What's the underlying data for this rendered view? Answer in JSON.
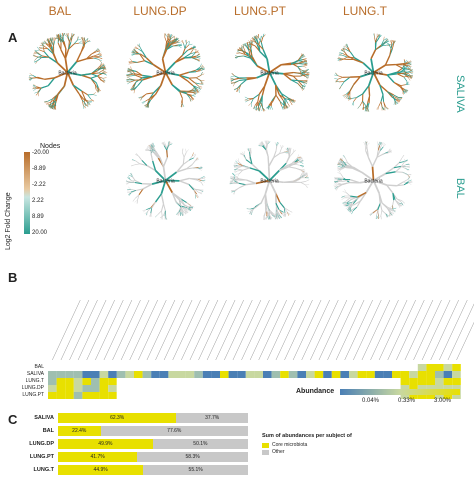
{
  "panels": {
    "A": "A",
    "B": "B",
    "C": "C"
  },
  "trees": {
    "columns": [
      "BAL",
      "LUNG.DP",
      "LUNG.PT",
      "LUNG.T"
    ],
    "row_labels": [
      "SALIVA",
      "BAL"
    ],
    "center_label": "Bacteria",
    "colors": {
      "up": "#b86d2a",
      "down": "#2a9d8f",
      "neutral": "#cfcfcf"
    }
  },
  "legend": {
    "title": "Nodes",
    "axis_label": "Log2 Fold Change",
    "ticks": [
      "-20.00",
      "-8.89",
      "-2.22",
      "2.22",
      "8.89",
      "20.00"
    ]
  },
  "heatmap": {
    "rows": [
      "BAL",
      "SALIVA",
      "LUNG.T",
      "LUNG.DP",
      "LUNG.PT"
    ],
    "legend_title": "Abundance",
    "legend_ticks": [
      "0.04%",
      "0.33%",
      "3.00%"
    ],
    "colors": {
      "low": "#4a7fb5",
      "mid": "#c8d8a0",
      "high": "#e8e000"
    }
  },
  "chart_data": {
    "type": "bar",
    "categories": [
      "SALIVA",
      "BAL",
      "LUNG.DP",
      "LUNG.PT",
      "LUNG.T"
    ],
    "series": [
      {
        "name": "Core microbiota",
        "values": [
          62.3,
          22.4,
          49.9,
          41.7,
          44.9
        ],
        "labels": [
          "62.3%",
          "22.4%",
          "49.9%",
          "41.7%",
          "44.9%"
        ]
      },
      {
        "name": "Other",
        "values": [
          37.7,
          77.6,
          50.1,
          58.3,
          55.1
        ],
        "labels": [
          "37.7%",
          "77.6%",
          "50.1%",
          "58.3%",
          "55.1%"
        ]
      }
    ],
    "legend_title": "Sum of abundances per subject of",
    "legend_items": [
      "Core microbiota",
      "Other"
    ],
    "colors": {
      "core": "#e8e000",
      "other": "#c8c8c8"
    }
  }
}
